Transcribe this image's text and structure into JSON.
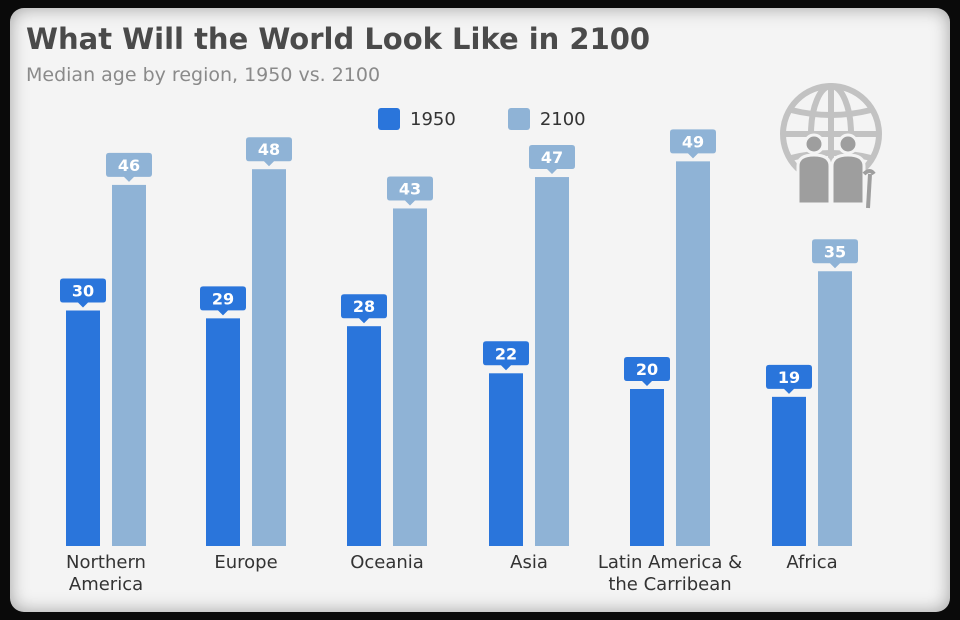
{
  "header": {
    "title": "What Will the World Look Like in 2100",
    "subtitle": "Median age by region, 1950 vs. 2100"
  },
  "icon": {
    "name": "globe-elderly-people-icon"
  },
  "colors": {
    "series_1950": "#2a75db",
    "series_2100": "#8fb3d6"
  },
  "chart_data": {
    "type": "bar",
    "title": "What Will the World Look Like in 2100",
    "subtitle": "Median age by region, 1950 vs. 2100",
    "xlabel": "",
    "ylabel": "",
    "ylim": [
      0,
      55
    ],
    "grid": false,
    "legend_position": "top",
    "categories": [
      [
        "Northern",
        "America"
      ],
      [
        "Europe"
      ],
      [
        "Oceania"
      ],
      [
        "Asia"
      ],
      [
        "Latin America &",
        "the Carribean"
      ],
      [
        "Africa"
      ]
    ],
    "series": [
      {
        "name": "1950",
        "color": "#2a75db",
        "values": [
          30,
          29,
          28,
          22,
          20,
          19
        ]
      },
      {
        "name": "2100",
        "color": "#8fb3d6",
        "values": [
          46,
          48,
          43,
          47,
          49,
          35
        ]
      }
    ]
  }
}
